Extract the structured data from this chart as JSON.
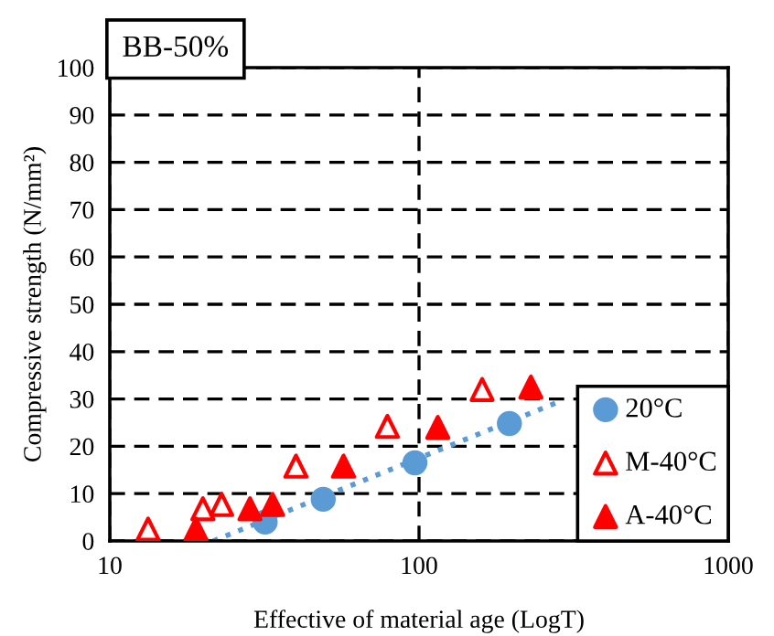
{
  "chart_data": {
    "type": "scatter",
    "title": "BB-50%",
    "xlabel": "Effective of material age (LogT)",
    "ylabel": "Compressive strength (N/mm²)",
    "log": "x",
    "xlim": [
      10,
      1000
    ],
    "xticks": [
      10,
      100,
      1000
    ],
    "ylim": [
      0,
      100
    ],
    "yticks": [
      0,
      10,
      20,
      30,
      40,
      50,
      60,
      70,
      80,
      90,
      100
    ],
    "grid": true,
    "legend": "bottom right",
    "series": [
      {
        "name": "20°C",
        "color": "#5b9bd5",
        "marker": "circle",
        "x": [
          31.8,
          49,
          97,
          196
        ],
        "values": [
          4.0,
          8.8,
          16.5,
          24.8
        ]
      },
      {
        "name": "M-40°C",
        "color": "#ff0000",
        "marker": "triangle",
        "x": [
          13.3,
          20,
          23,
          40,
          79,
          160
        ],
        "values": [
          2.5,
          6.8,
          7.7,
          15.8,
          24.2,
          32
        ]
      },
      {
        "name": "A-40°C",
        "color": "#ff0000",
        "marker": "triangle",
        "x": [
          19,
          28.4,
          33.6,
          57,
          115,
          230
        ],
        "values": [
          2.5,
          6.8,
          7.7,
          15.8,
          24,
          32.5
        ]
      },
      {
        "type": "line",
        "color": "#5b9bd5",
        "line_style": "dotted",
        "x": [
          21.6,
          288
        ],
        "values": [
          0,
          29.6
        ]
      }
    ]
  }
}
